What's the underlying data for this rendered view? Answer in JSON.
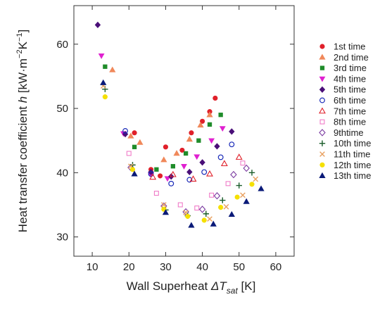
{
  "chart_data": {
    "type": "scatter",
    "xlabel": {
      "prefix": "Wall Superheat ",
      "symbol": "ΔT",
      "subscript": "sat",
      "suffix": " [K]"
    },
    "ylabel": {
      "prefix": "Heat transfer coefficient  ",
      "symbol": "h",
      "unit": " [kW·m",
      "exp1": "−2",
      "mid": "K",
      "exp2": "−1",
      "close": "]"
    },
    "xlim": [
      5,
      65
    ],
    "ylim": [
      27,
      66
    ],
    "xticks": [
      10,
      20,
      30,
      40,
      50,
      60
    ],
    "yticks": [
      30,
      40,
      50,
      60
    ],
    "grid": false,
    "legend_position": "right",
    "series": [
      {
        "name": "1st time",
        "color": "#e0202a",
        "marker": "circle-filled",
        "points": [
          [
            21.5,
            46.2
          ],
          [
            26.0,
            40.5
          ],
          [
            28.5,
            39.5
          ],
          [
            30.0,
            44.0
          ],
          [
            34.5,
            43.5
          ],
          [
            37.0,
            46.2
          ],
          [
            40.0,
            48.0
          ],
          [
            42.0,
            49.5
          ],
          [
            43.5,
            51.6
          ]
        ]
      },
      {
        "name": "2nd time",
        "color": "#f0885a",
        "marker": "triangle-up-filled",
        "points": [
          [
            15.5,
            56.0
          ],
          [
            20.5,
            45.7
          ],
          [
            23.0,
            44.7
          ],
          [
            29.5,
            42.0
          ],
          [
            33.0,
            43.0
          ],
          [
            36.5,
            45.2
          ],
          [
            39.5,
            47.4
          ],
          [
            42.0,
            49.0
          ]
        ]
      },
      {
        "name": "3rd time",
        "color": "#1f8c2a",
        "marker": "square-filled",
        "points": [
          [
            13.5,
            56.5
          ],
          [
            21.5,
            44.0
          ],
          [
            27.5,
            40.5
          ],
          [
            32.0,
            41.0
          ],
          [
            35.5,
            43.0
          ],
          [
            39.0,
            45.0
          ],
          [
            42.0,
            47.5
          ],
          [
            45.0,
            49.0
          ]
        ]
      },
      {
        "name": "4th time",
        "color": "#e020d0",
        "marker": "triangle-down-filled",
        "points": [
          [
            12.5,
            58.2
          ],
          [
            18.5,
            46.1
          ],
          [
            26.0,
            39.7
          ],
          [
            30.5,
            39.1
          ],
          [
            35.0,
            41.0
          ],
          [
            38.5,
            42.5
          ],
          [
            42.5,
            45.0
          ],
          [
            45.5,
            46.9
          ]
        ]
      },
      {
        "name": "5th time",
        "color": "#4a0f78",
        "marker": "diamond-filled",
        "points": [
          [
            11.5,
            63.0
          ],
          [
            19.0,
            46.0
          ],
          [
            26.0,
            40.1
          ],
          [
            31.5,
            39.4
          ],
          [
            36.5,
            40.1
          ],
          [
            40.0,
            41.6
          ],
          [
            44.0,
            44.1
          ],
          [
            48.0,
            46.4
          ]
        ]
      },
      {
        "name": "6th time",
        "color": "#1a2ab8",
        "marker": "circle-open",
        "points": [
          [
            19.0,
            46.5
          ],
          [
            26.0,
            39.8
          ],
          [
            31.5,
            38.3
          ],
          [
            36.5,
            38.9
          ],
          [
            40.5,
            40.1
          ],
          [
            45.0,
            42.4
          ],
          [
            48.0,
            44.4
          ]
        ]
      },
      {
        "name": "7th time",
        "color": "#e0202a",
        "marker": "triangle-up-open",
        "points": [
          [
            26.5,
            39.3
          ],
          [
            32.0,
            39.7
          ],
          [
            37.5,
            39.0
          ],
          [
            42.0,
            39.8
          ],
          [
            46.0,
            41.4
          ],
          [
            50.0,
            42.4
          ]
        ]
      },
      {
        "name": "8th time",
        "color": "#f07cc8",
        "marker": "square-open",
        "points": [
          [
            20.0,
            43.0
          ],
          [
            27.5,
            36.8
          ],
          [
            34.0,
            35.0
          ],
          [
            38.5,
            34.5
          ],
          [
            42.5,
            36.5
          ],
          [
            47.0,
            38.3
          ],
          [
            51.0,
            41.5
          ]
        ]
      },
      {
        "name": "9thtime",
        "color": "#7a3aa0",
        "marker": "diamond-open",
        "points": [
          [
            20.5,
            40.8
          ],
          [
            29.5,
            34.8
          ],
          [
            35.5,
            33.9
          ],
          [
            40.0,
            34.3
          ],
          [
            44.0,
            36.4
          ],
          [
            48.5,
            39.7
          ],
          [
            52.0,
            40.7
          ]
        ]
      },
      {
        "name": "10th time",
        "color": "#1a5c2a",
        "marker": "plus",
        "points": [
          [
            13.5,
            53.0
          ],
          [
            21.0,
            41.2
          ],
          [
            30.0,
            34.2
          ],
          [
            36.0,
            33.3
          ],
          [
            41.0,
            33.6
          ],
          [
            45.5,
            35.7
          ],
          [
            50.0,
            38.0
          ],
          [
            53.5,
            40.0
          ]
        ]
      },
      {
        "name": "11th time",
        "color": "#e8a060",
        "marker": "cross",
        "points": [
          [
            13.0,
            53.5
          ],
          [
            20.5,
            41.0
          ],
          [
            29.5,
            35.0
          ],
          [
            35.5,
            33.8
          ],
          [
            42.0,
            32.8
          ],
          [
            46.5,
            34.7
          ],
          [
            51.0,
            36.5
          ],
          [
            54.5,
            39.0
          ]
        ]
      },
      {
        "name": "12th time",
        "color": "#f5e000",
        "marker": "circle-filled",
        "points": [
          [
            13.5,
            51.8
          ],
          [
            21.0,
            40.5
          ],
          [
            29.5,
            34.3
          ],
          [
            36.0,
            33.2
          ],
          [
            40.5,
            32.6
          ],
          [
            45.0,
            34.6
          ],
          [
            49.5,
            36.2
          ],
          [
            53.5,
            38.2
          ]
        ]
      },
      {
        "name": "13th time",
        "color": "#0a1a78",
        "marker": "triangle-up-filled",
        "points": [
          [
            13.0,
            54.0
          ],
          [
            21.5,
            39.8
          ],
          [
            30.0,
            33.8
          ],
          [
            37.0,
            31.8
          ],
          [
            43.0,
            32.0
          ],
          [
            48.0,
            33.5
          ],
          [
            52.0,
            35.5
          ],
          [
            56.0,
            37.5
          ]
        ]
      }
    ]
  }
}
